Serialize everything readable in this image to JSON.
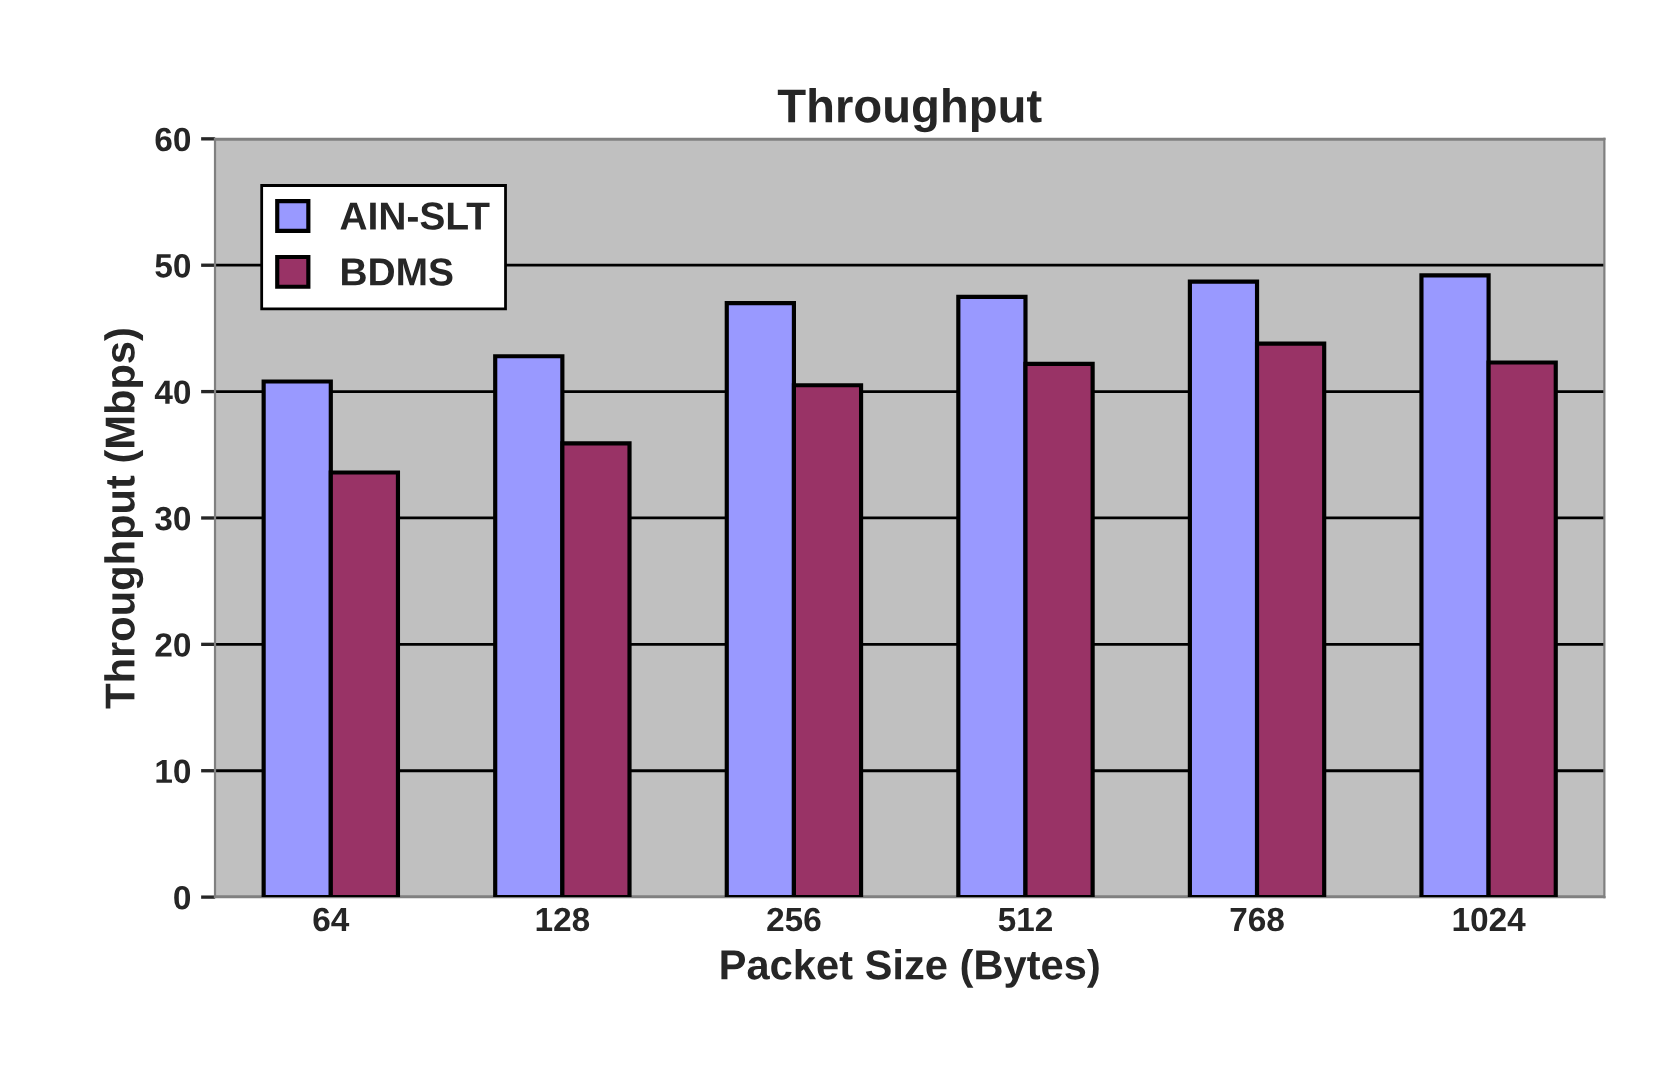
{
  "chart_data": {
    "type": "bar",
    "title": "Throughput",
    "xlabel": "Packet Size (Bytes)",
    "ylabel": "Throughput (Mbps)",
    "categories": [
      "64",
      "128",
      "256",
      "512",
      "768",
      "1024"
    ],
    "series": [
      {
        "name": "AIN-SLT",
        "color": "#9999ff",
        "values": [
          40.8,
          42.8,
          47.0,
          47.5,
          48.7,
          49.2
        ]
      },
      {
        "name": "BDMS",
        "color": "#993366",
        "values": [
          33.6,
          35.9,
          40.5,
          42.2,
          43.8,
          42.3
        ]
      }
    ],
    "ylim": [
      0,
      60
    ],
    "yticks": [
      0,
      10,
      20,
      30,
      40,
      50,
      60
    ],
    "grid": "y",
    "legend": "top left"
  }
}
